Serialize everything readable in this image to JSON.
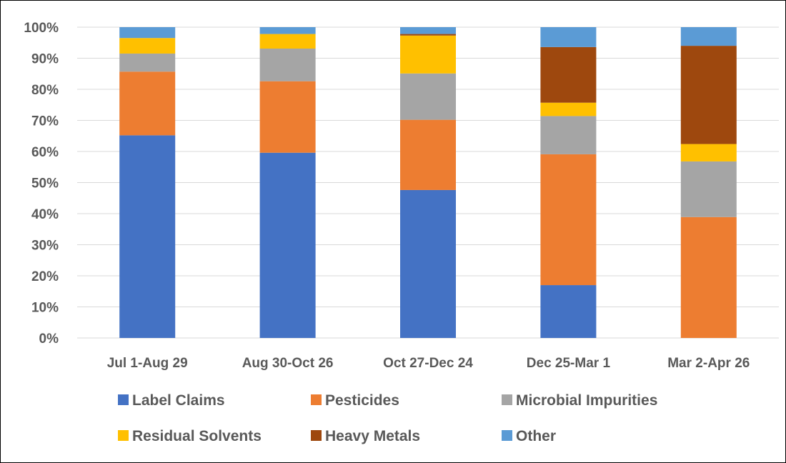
{
  "chart_data": {
    "type": "bar",
    "stacked": true,
    "percent": true,
    "categories": [
      "Jul 1-Aug 29",
      "Aug 30-Oct 26",
      "Oct 27-Dec 24",
      "Dec 25-Mar 1",
      "Mar 2-Apr 26"
    ],
    "ylim": [
      0,
      100
    ],
    "yticks": [
      "0%",
      "10%",
      "20%",
      "30%",
      "40%",
      "50%",
      "60%",
      "70%",
      "80%",
      "90%",
      "100%"
    ],
    "grid": true,
    "legend_position": "bottom",
    "series": [
      {
        "name": "Label Claims",
        "color": "#4472C4",
        "values": [
          65.2,
          59.6,
          47.6,
          17.0,
          0.0
        ]
      },
      {
        "name": "Pesticides",
        "color": "#ED7D31",
        "values": [
          20.5,
          23.0,
          22.6,
          42.1,
          38.9
        ]
      },
      {
        "name": "Microbial Impurities",
        "color": "#A5A5A5",
        "values": [
          5.8,
          10.5,
          14.9,
          12.3,
          17.9
        ]
      },
      {
        "name": "Residual Solvents",
        "color": "#FFC000",
        "values": [
          5.0,
          4.7,
          12.2,
          4.3,
          5.6
        ]
      },
      {
        "name": "Heavy Metals",
        "color": "#9E480E",
        "values": [
          0.0,
          0.0,
          0.5,
          17.9,
          31.6
        ]
      },
      {
        "name": "Other",
        "color": "#5B9BD5",
        "values": [
          3.5,
          2.2,
          2.2,
          6.4,
          6.0
        ]
      }
    ]
  }
}
